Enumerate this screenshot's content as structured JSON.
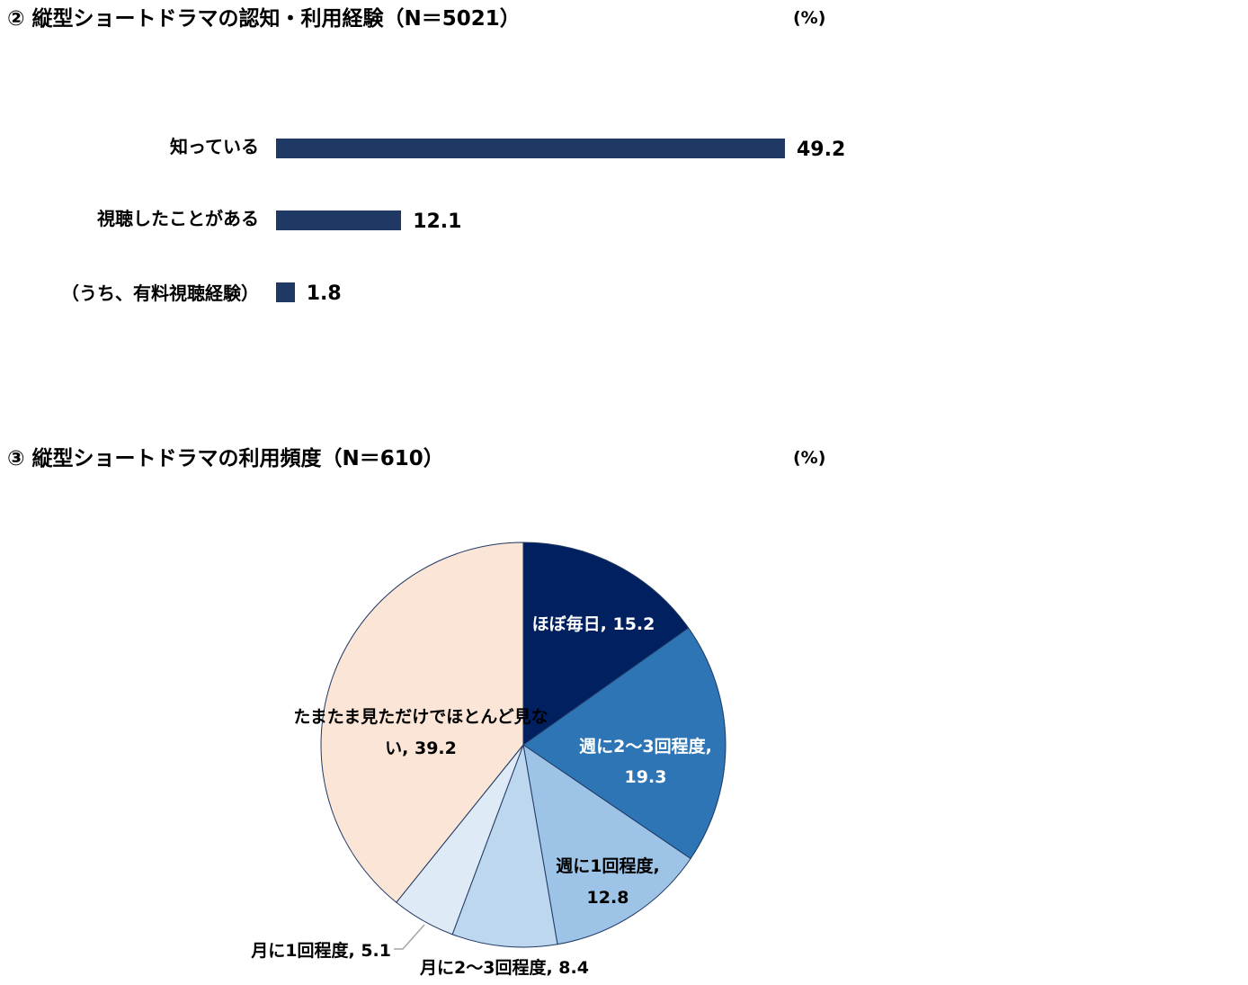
{
  "section2": {
    "title": "② 縦型ショートドラマの認知・利用経験（N＝5021）",
    "unit": "(%)"
  },
  "section3": {
    "title": "③ 縦型ショートドラマの利用頻度（N＝610）",
    "unit": "(%)"
  },
  "chart_data": [
    {
      "type": "bar",
      "orientation": "horizontal",
      "title": "② 縦型ショートドラマの認知・利用経験（N＝5021）",
      "unit": "(%)",
      "categories": [
        "知っている",
        "視聴したことがある",
        "（うち、有料視聴経験）"
      ],
      "values": [
        49.2,
        12.1,
        1.8
      ],
      "value_labels": [
        "49.2",
        "12.1",
        "1.8"
      ],
      "xlim": [
        0,
        50
      ],
      "grid": false,
      "color": "#1f3864"
    },
    {
      "type": "pie",
      "title": "③ 縦型ショートドラマの利用頻度（N＝610）",
      "unit": "(%)",
      "slices": [
        {
          "label": "ほぼ毎日, 15.2",
          "value": 15.2,
          "color": "#002060"
        },
        {
          "label": "週に2～3回程度, 19.3",
          "value": 19.3,
          "color": "#2e75b6"
        },
        {
          "label": "週に1回程度, 12.8",
          "value": 12.8,
          "color": "#9dc3e6"
        },
        {
          "label": "月に2～3回程度, 8.4",
          "value": 8.4,
          "color": "#bdd7ee"
        },
        {
          "label": "月に1回程度, 5.1",
          "value": 5.1,
          "color": "#deebf7"
        },
        {
          "label": "たまたま見ただけでほとんど見ない, 39.2",
          "value": 39.2,
          "color": "#fbe5d6"
        }
      ],
      "start": "12 o'clock",
      "direction": "clockwise"
    }
  ]
}
